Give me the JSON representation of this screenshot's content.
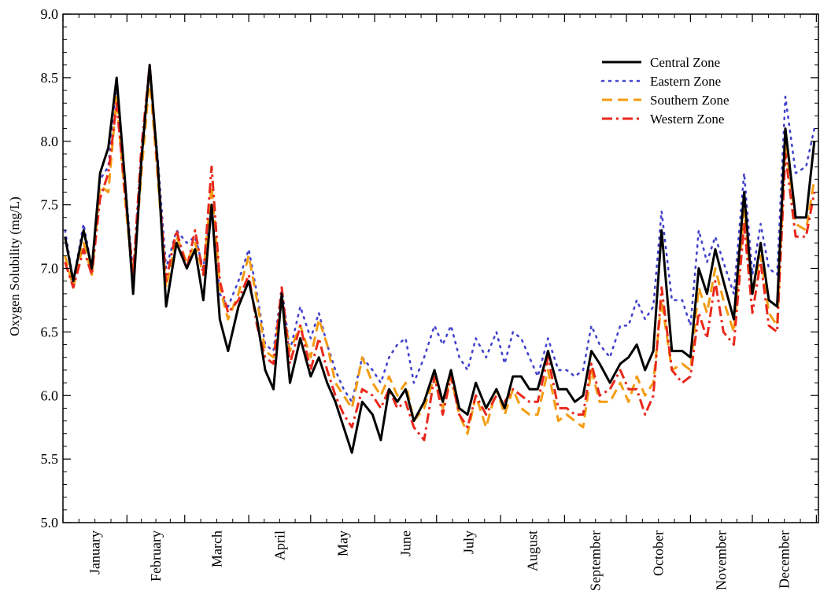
{
  "chart_data": {
    "type": "line",
    "title": "",
    "xlabel": "",
    "ylabel": "Oxygen Solubility (mg/L)",
    "ylim": [
      5.0,
      9.0
    ],
    "yticks": [
      "5.0",
      "5.5",
      "6.0",
      "6.5",
      "7.0",
      "7.5",
      "8.0",
      "8.5",
      "9.0"
    ],
    "categories": [
      "January",
      "February",
      "March",
      "April",
      "May",
      "June",
      "July",
      "August",
      "September",
      "October",
      "November",
      "December"
    ],
    "x": [
      1,
      5,
      10,
      14,
      18,
      22,
      26,
      30,
      34,
      38,
      42,
      46,
      50,
      55,
      60,
      64,
      68,
      72,
      76,
      80,
      85,
      90,
      94,
      98,
      102,
      106,
      110,
      115,
      120,
      124,
      128,
      132,
      136,
      140,
      145,
      150,
      154,
      158,
      162,
      166,
      170,
      175,
      180,
      184,
      188,
      192,
      196,
      200,
      205,
      210,
      214,
      218,
      222,
      226,
      230,
      235,
      240,
      244,
      248,
      252,
      256,
      260,
      265,
      270,
      274,
      278,
      282,
      286,
      290,
      295,
      300,
      304,
      308,
      312,
      316,
      320,
      325,
      330,
      334,
      338,
      342,
      346,
      350,
      355,
      360,
      364
    ],
    "grid": false,
    "legend_position": "top-right",
    "series": [
      {
        "name": "Central Zone",
        "color": "#000000",
        "dash": "solid",
        "values": [
          7.25,
          6.9,
          7.3,
          7.0,
          7.75,
          7.95,
          8.5,
          7.7,
          6.8,
          7.85,
          8.6,
          7.8,
          6.7,
          7.2,
          7.0,
          7.15,
          6.75,
          7.5,
          6.6,
          6.35,
          6.7,
          6.9,
          6.6,
          6.2,
          6.05,
          6.8,
          6.1,
          6.45,
          6.15,
          6.3,
          6.1,
          5.95,
          5.75,
          5.55,
          5.95,
          5.85,
          5.65,
          6.05,
          5.95,
          6.05,
          5.8,
          5.95,
          6.2,
          5.95,
          6.2,
          5.9,
          5.85,
          6.1,
          5.9,
          6.05,
          5.9,
          6.15,
          6.15,
          6.05,
          6.05,
          6.35,
          6.05,
          6.05,
          5.95,
          6.0,
          6.35,
          6.25,
          6.1,
          6.25,
          6.3,
          6.4,
          6.2,
          6.35,
          7.3,
          6.35,
          6.35,
          6.3,
          7.0,
          6.8,
          7.15,
          6.9,
          6.6,
          7.6,
          6.8,
          7.2,
          6.75,
          6.7,
          8.1,
          7.4,
          7.4,
          8.0
        ]
      },
      {
        "name": "Eastern Zone",
        "color": "#4444cc",
        "dash": "dotted",
        "values": [
          7.3,
          6.9,
          7.35,
          7.0,
          7.7,
          7.8,
          8.45,
          7.7,
          6.95,
          7.9,
          8.55,
          7.85,
          7.0,
          7.3,
          7.2,
          7.25,
          7.0,
          7.5,
          6.8,
          6.7,
          6.9,
          7.15,
          6.8,
          6.4,
          6.35,
          6.85,
          6.35,
          6.7,
          6.45,
          6.65,
          6.4,
          6.2,
          6.05,
          5.95,
          6.3,
          6.2,
          6.1,
          6.3,
          6.4,
          6.45,
          6.1,
          6.3,
          6.55,
          6.4,
          6.55,
          6.3,
          6.2,
          6.45,
          6.3,
          6.5,
          6.25,
          6.5,
          6.45,
          6.3,
          6.15,
          6.45,
          6.2,
          6.2,
          6.15,
          6.2,
          6.55,
          6.4,
          6.3,
          6.55,
          6.55,
          6.75,
          6.6,
          6.7,
          7.45,
          6.75,
          6.75,
          6.55,
          7.3,
          7.05,
          7.25,
          7.05,
          6.8,
          7.75,
          6.95,
          7.35,
          7.0,
          6.95,
          8.35,
          7.75,
          7.8,
          8.1
        ]
      },
      {
        "name": "Southern Zone",
        "color": "#f39c12",
        "dash": "dashed",
        "values": [
          7.1,
          6.85,
          7.2,
          6.95,
          7.65,
          7.6,
          8.35,
          7.55,
          6.9,
          7.75,
          8.5,
          7.7,
          6.85,
          7.25,
          7.05,
          7.2,
          6.95,
          7.65,
          6.85,
          6.6,
          6.8,
          7.1,
          6.75,
          6.35,
          6.3,
          6.75,
          6.35,
          6.55,
          6.3,
          6.6,
          6.4,
          6.1,
          6.0,
          5.9,
          6.3,
          6.1,
          6.0,
          6.15,
          6.0,
          6.1,
          5.8,
          5.9,
          6.15,
          5.9,
          6.15,
          5.85,
          5.7,
          6.0,
          5.75,
          6.05,
          5.85,
          6.05,
          5.9,
          5.85,
          5.85,
          6.2,
          5.8,
          5.85,
          5.8,
          5.75,
          6.2,
          5.95,
          5.95,
          6.1,
          5.95,
          6.15,
          6.0,
          6.1,
          6.75,
          6.2,
          6.25,
          6.2,
          6.85,
          6.65,
          7.0,
          6.75,
          6.5,
          7.45,
          6.8,
          7.1,
          6.65,
          6.55,
          8.0,
          7.35,
          7.3,
          7.7
        ]
      },
      {
        "name": "Western Zone",
        "color": "#e8291c",
        "dash": "dashdot",
        "values": [
          7.05,
          6.85,
          7.15,
          6.95,
          7.55,
          7.75,
          8.3,
          7.6,
          6.95,
          7.95,
          8.6,
          7.75,
          6.9,
          7.3,
          7.0,
          7.3,
          6.95,
          7.8,
          6.9,
          6.65,
          6.75,
          6.95,
          6.55,
          6.3,
          6.25,
          6.85,
          6.25,
          6.55,
          6.2,
          6.45,
          6.2,
          6.0,
          5.85,
          5.75,
          6.05,
          6.0,
          5.9,
          6.05,
          5.9,
          5.95,
          5.75,
          5.65,
          6.15,
          5.85,
          6.15,
          5.85,
          5.75,
          6.0,
          5.85,
          6.0,
          5.95,
          6.05,
          6.0,
          5.95,
          5.95,
          6.3,
          5.9,
          5.9,
          5.85,
          5.85,
          6.25,
          6.0,
          6.05,
          6.2,
          6.05,
          6.05,
          5.85,
          6.0,
          6.85,
          6.2,
          6.1,
          6.15,
          6.65,
          6.45,
          6.9,
          6.5,
          6.4,
          7.35,
          6.65,
          7.05,
          6.55,
          6.5,
          7.9,
          7.25,
          7.25,
          7.6
        ]
      }
    ]
  }
}
